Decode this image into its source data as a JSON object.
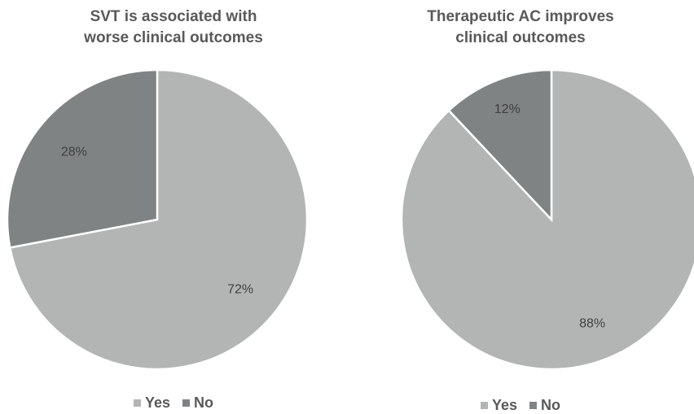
{
  "colors": {
    "yes": "#b3b5b5",
    "no": "#808383",
    "title": "#595959",
    "label": "#404040"
  },
  "chart_data": [
    {
      "type": "pie",
      "title_lines": [
        "SVT is associated with",
        "worse clinical outcomes"
      ],
      "slices": [
        {
          "label": "Yes",
          "value": 72,
          "value_label": "72%"
        },
        {
          "label": "No",
          "value": 28,
          "value_label": "28%"
        }
      ],
      "legend": [
        "Yes",
        "No"
      ],
      "legend_position": "bottom"
    },
    {
      "type": "pie",
      "title_lines": [
        "Therapeutic AC improves",
        "clinical outcomes"
      ],
      "slices": [
        {
          "label": "Yes",
          "value": 88,
          "value_label": "88%"
        },
        {
          "label": "No",
          "value": 12,
          "value_label": "12%"
        }
      ],
      "legend": [
        "Yes",
        "No"
      ],
      "legend_position": "bottom"
    }
  ]
}
